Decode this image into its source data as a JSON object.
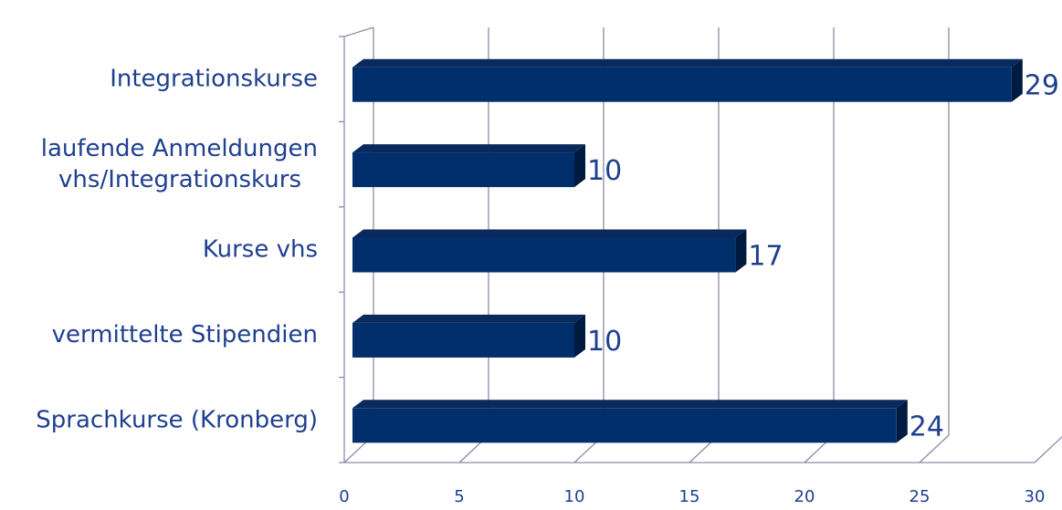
{
  "chart_data": {
    "type": "bar",
    "orientation": "horizontal",
    "style": "3d",
    "categories": [
      [
        "Integrationskurse"
      ],
      [
        "laufende Anmeldungen",
        "vhs/Integrationskurs"
      ],
      [
        "Kurse vhs"
      ],
      [
        "vermittelte Stipendien"
      ],
      [
        "Sprachkurse (Kronberg)"
      ]
    ],
    "values": [
      29,
      10,
      17,
      10,
      24
    ],
    "value_labels": [
      "29",
      "10",
      "17",
      "10",
      "24"
    ],
    "x_ticks": [
      "0",
      "5",
      "10",
      "15",
      "20",
      "25",
      "30"
    ],
    "xlim": [
      0,
      30
    ],
    "grid": true,
    "legend": "none",
    "bar_color": "#002f6c",
    "bar_top_color": "#0a2a5e",
    "bar_side_color": "#001a40",
    "text_color": "#1f3f8f",
    "grid_color": "#8c8ca8"
  }
}
